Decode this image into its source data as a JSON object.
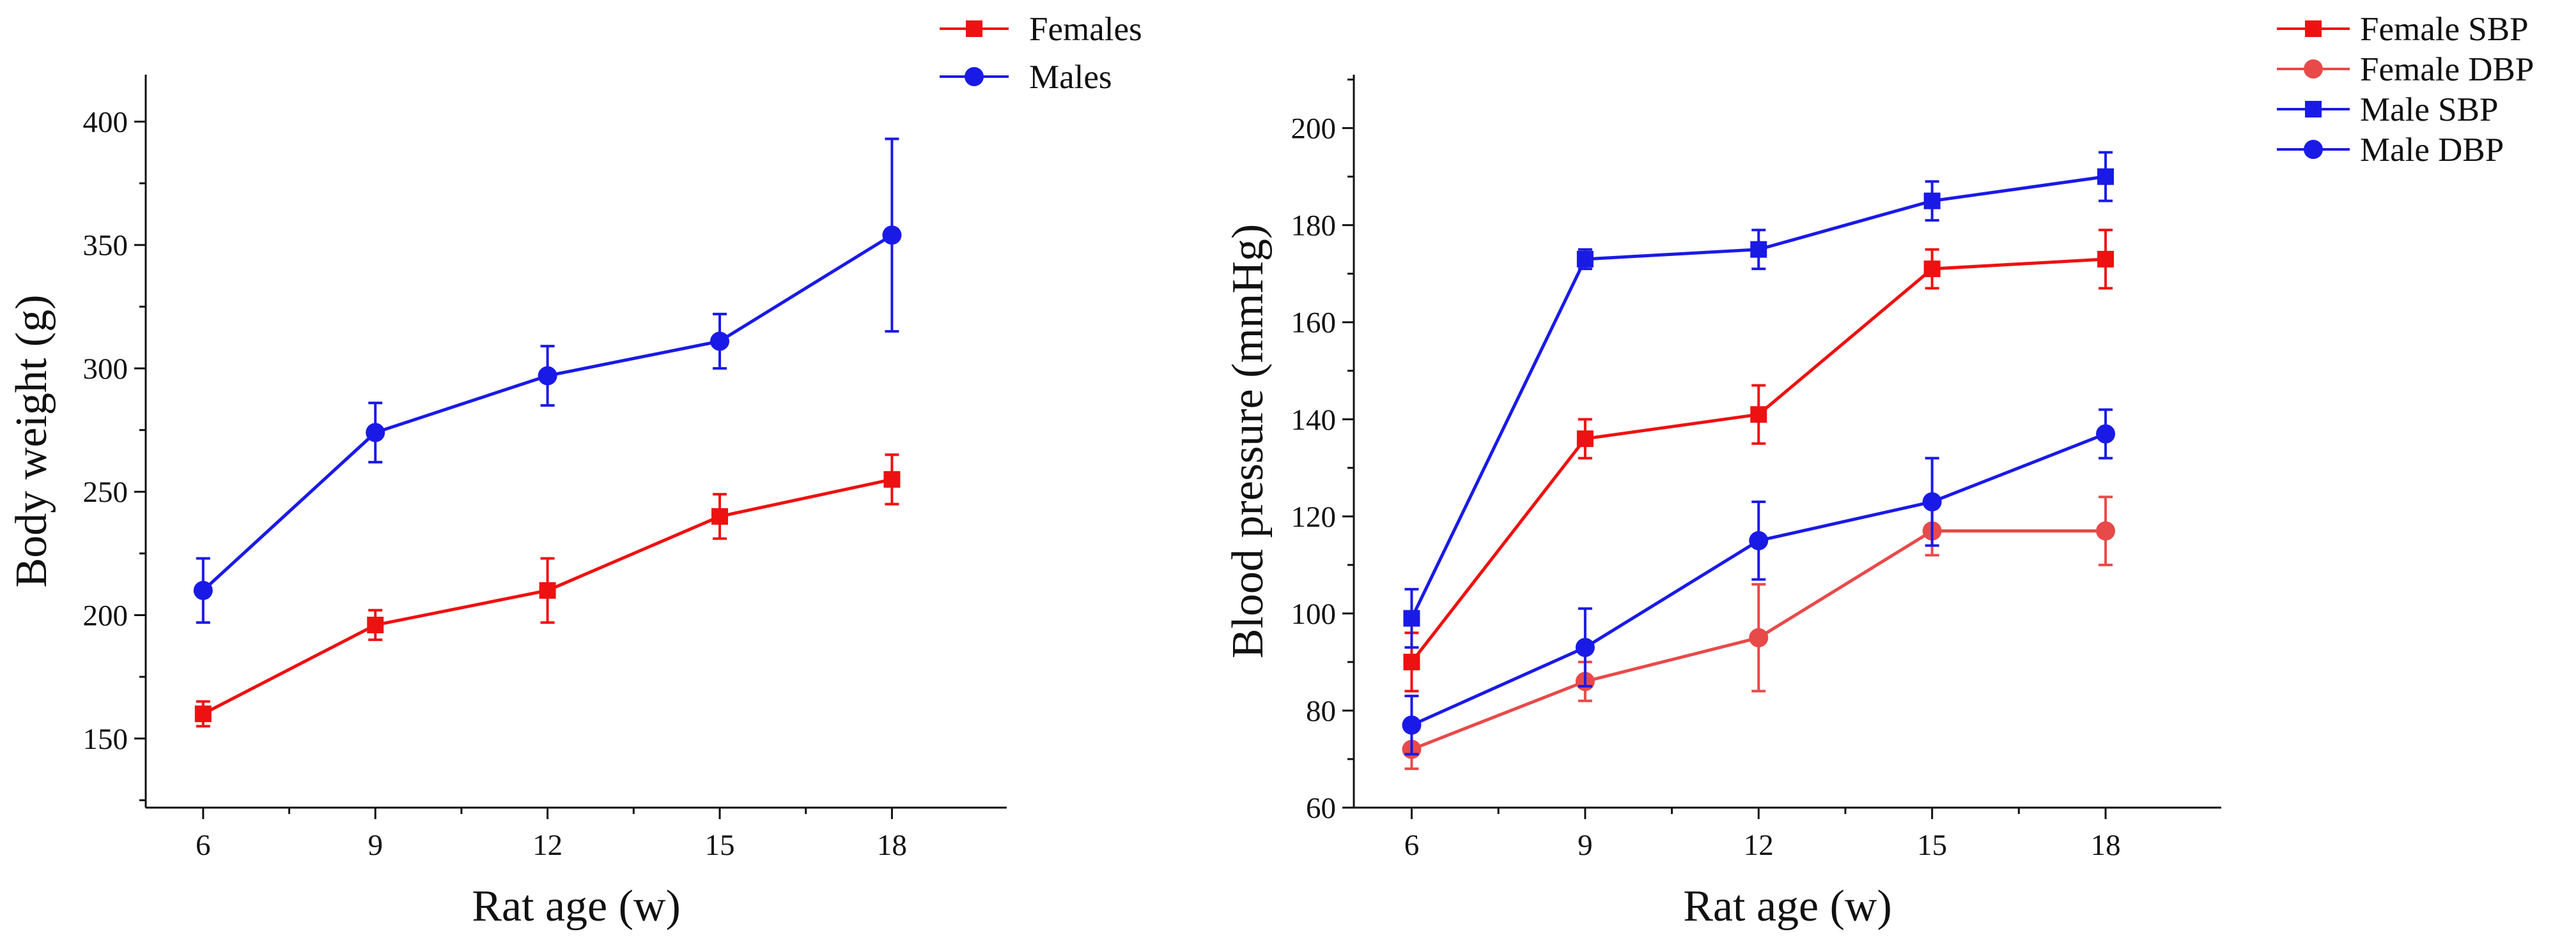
{
  "chart_data": [
    {
      "type": "line",
      "xlabel": "Rat age (w)",
      "ylabel": "Body weight (g)",
      "x": [
        6,
        9,
        12,
        15,
        18
      ],
      "xticks": [
        "6",
        "9",
        "12",
        "15",
        "18"
      ],
      "xlim": [
        5,
        20
      ],
      "yticks": [
        "150",
        "200",
        "250",
        "300",
        "350",
        "400"
      ],
      "ytick_values": [
        150,
        200,
        250,
        300,
        350,
        400
      ],
      "ylim": [
        122,
        419
      ],
      "legend_position": "top-right",
      "series": [
        {
          "name": "Females",
          "color": "#ee1111",
          "marker": "square",
          "values": [
            160,
            196,
            210,
            240,
            255
          ],
          "errors": [
            5,
            6,
            13,
            9,
            10
          ]
        },
        {
          "name": "Males",
          "color": "#1a1ae6",
          "marker": "circle",
          "values": [
            210,
            274,
            297,
            311,
            354
          ],
          "errors": [
            13,
            12,
            12,
            11,
            39
          ]
        }
      ]
    },
    {
      "type": "line",
      "xlabel": "Rat age (w)",
      "ylabel": "Blood pressure (mmHg)",
      "x": [
        6,
        9,
        12,
        15,
        18
      ],
      "xticks": [
        "6",
        "9",
        "12",
        "15",
        "18"
      ],
      "xlim": [
        5,
        20
      ],
      "yticks": [
        "60",
        "80",
        "100",
        "120",
        "140",
        "160",
        "180",
        "200"
      ],
      "ytick_values": [
        60,
        80,
        100,
        120,
        140,
        160,
        180,
        200
      ],
      "ylim": [
        60,
        211
      ],
      "legend_position": "top-right",
      "series": [
        {
          "name": "Female SBP",
          "color": "#ee1111",
          "marker": "square",
          "values": [
            90,
            136,
            141,
            171,
            173
          ],
          "errors": [
            6,
            4,
            6,
            4,
            6
          ]
        },
        {
          "name": "Female DBP",
          "color": "#e84a4a",
          "marker": "circle",
          "values": [
            72,
            86,
            95,
            117,
            117
          ],
          "errors": [
            4,
            4,
            11,
            5,
            7
          ]
        },
        {
          "name": "Male SBP",
          "color": "#1a1ae6",
          "marker": "square",
          "values": [
            99,
            173,
            175,
            185,
            190
          ],
          "errors": [
            6,
            2,
            4,
            4,
            5
          ]
        },
        {
          "name": "Male DBP",
          "color": "#1a1ae6",
          "marker": "circle",
          "values": [
            77,
            93,
            115,
            123,
            137
          ],
          "errors": [
            6,
            8,
            8,
            9,
            5
          ]
        }
      ]
    }
  ]
}
